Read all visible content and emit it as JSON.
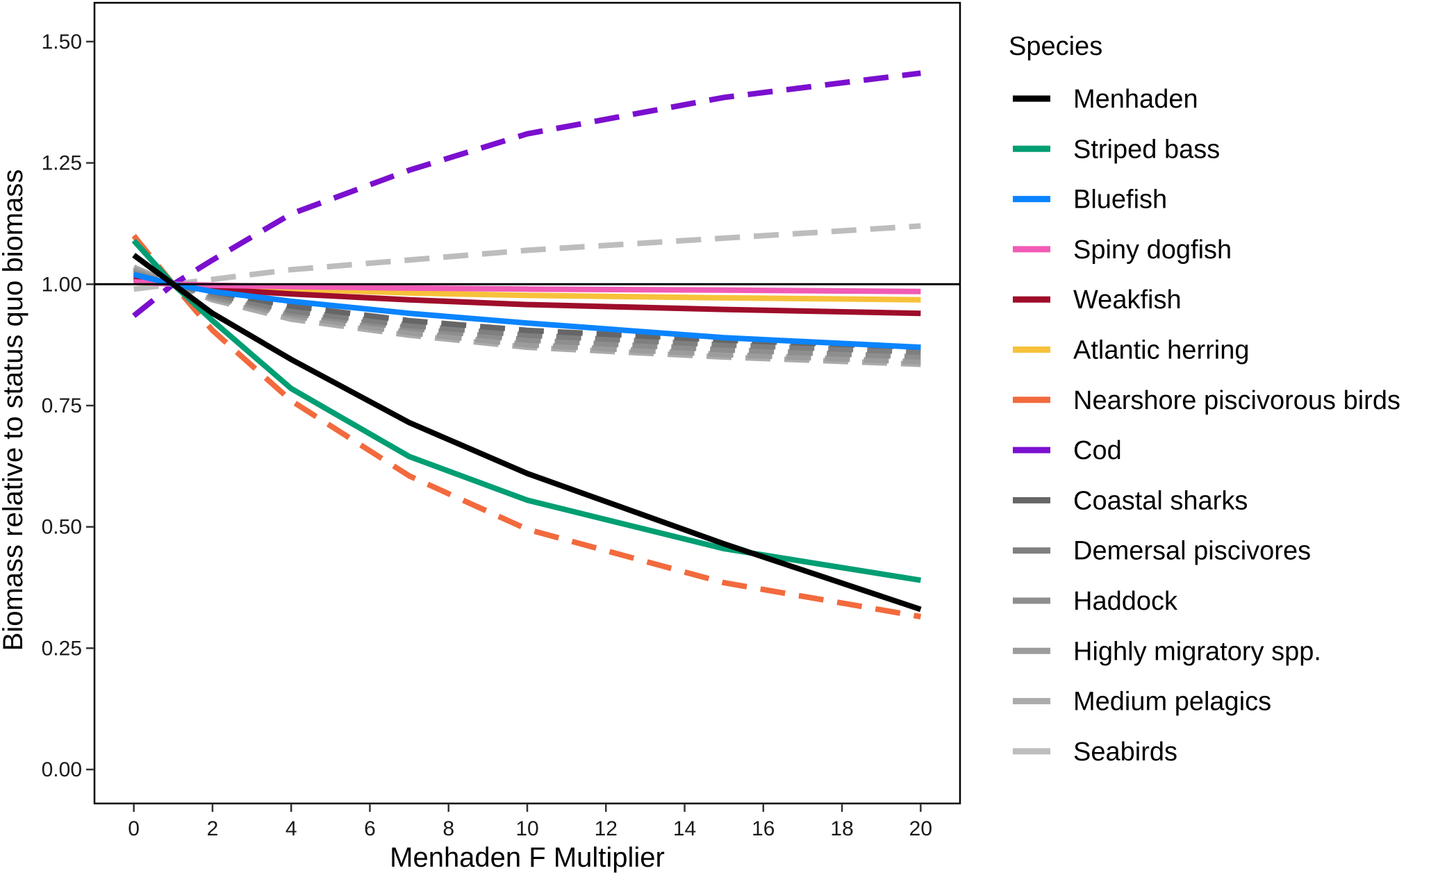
{
  "chart_data": {
    "type": "line",
    "title": "",
    "xlabel": "Menhaden F Multiplier",
    "ylabel": "Biomass relative to status quo biomass",
    "xlim": [
      -1,
      21
    ],
    "ylim": [
      -0.07,
      1.58
    ],
    "x_ticks": [
      0,
      2,
      4,
      6,
      8,
      10,
      12,
      14,
      16,
      18,
      20
    ],
    "x_tick_labels": [
      "0",
      "2",
      "4",
      "6",
      "8",
      "10",
      "12",
      "14",
      "16",
      "18",
      "20"
    ],
    "y_ticks": [
      0,
      0.25,
      0.5,
      0.75,
      1.0,
      1.25,
      1.5
    ],
    "y_tick_labels": [
      "0.00",
      "0.25",
      "0.50",
      "0.75",
      "1.00",
      "1.25",
      "1.50"
    ],
    "reference_line": 1.0,
    "grid": false,
    "legend_title": "Species",
    "legend_position": "right",
    "x": [
      0,
      1,
      2,
      4,
      7,
      10,
      15,
      20
    ],
    "series": [
      {
        "name": "Menhaden",
        "color": "#000000",
        "dashed": false,
        "values": [
          1.06,
          1.0,
          0.94,
          0.845,
          0.715,
          0.61,
          0.465,
          0.33
        ]
      },
      {
        "name": "Striped bass",
        "color": "#009E73",
        "dashed": false,
        "values": [
          1.09,
          1.0,
          0.925,
          0.785,
          0.645,
          0.555,
          0.455,
          0.39
        ]
      },
      {
        "name": "Bluefish",
        "color": "#0A84FF",
        "dashed": false,
        "values": [
          1.02,
          1.0,
          0.985,
          0.965,
          0.94,
          0.92,
          0.89,
          0.87
        ]
      },
      {
        "name": "Spiny dogfish",
        "color": "#F15BB5",
        "dashed": false,
        "values": [
          1.005,
          1.0,
          0.998,
          0.995,
          0.992,
          0.99,
          0.988,
          0.985
        ]
      },
      {
        "name": "Weakfish",
        "color": "#9E0D2A",
        "dashed": false,
        "values": [
          1.01,
          1.0,
          0.99,
          0.98,
          0.968,
          0.958,
          0.948,
          0.94
        ]
      },
      {
        "name": "Atlantic herring",
        "color": "#F7C13A",
        "dashed": false,
        "values": [
          1.005,
          1.0,
          0.995,
          0.99,
          0.982,
          0.977,
          0.972,
          0.968
        ]
      },
      {
        "name": "Nearshore piscivorous birds",
        "color": "#F26A3D",
        "dashed": true,
        "values": [
          1.1,
          1.0,
          0.905,
          0.76,
          0.605,
          0.495,
          0.385,
          0.315
        ]
      },
      {
        "name": "Cod",
        "color": "#7B0FCF",
        "dashed": true,
        "values": [
          0.935,
          1.0,
          1.05,
          1.145,
          1.235,
          1.31,
          1.385,
          1.435
        ]
      },
      {
        "name": "Coastal sharks",
        "color": "#666666",
        "dashed": true,
        "values": [
          1.015,
          1.0,
          0.985,
          0.955,
          0.925,
          0.905,
          0.885,
          0.87
        ]
      },
      {
        "name": "Demersal piscivores",
        "color": "#7F7F7F",
        "dashed": true,
        "values": [
          1.02,
          1.0,
          0.98,
          0.945,
          0.915,
          0.895,
          0.875,
          0.86
        ]
      },
      {
        "name": "Haddock",
        "color": "#8E8E8E",
        "dashed": true,
        "values": [
          1.025,
          1.0,
          0.975,
          0.94,
          0.91,
          0.885,
          0.865,
          0.85
        ]
      },
      {
        "name": "Highly migratory spp.",
        "color": "#9C9C9C",
        "dashed": true,
        "values": [
          1.03,
          1.0,
          0.972,
          0.935,
          0.9,
          0.875,
          0.855,
          0.84
        ]
      },
      {
        "name": "Medium pelagics",
        "color": "#ABABAB",
        "dashed": true,
        "values": [
          1.035,
          1.0,
          0.968,
          0.928,
          0.895,
          0.87,
          0.85,
          0.835
        ]
      },
      {
        "name": "Seabirds",
        "color": "#BDBDBD",
        "dashed": true,
        "values": [
          0.99,
          1.0,
          1.01,
          1.03,
          1.05,
          1.07,
          1.095,
          1.12
        ]
      }
    ]
  }
}
